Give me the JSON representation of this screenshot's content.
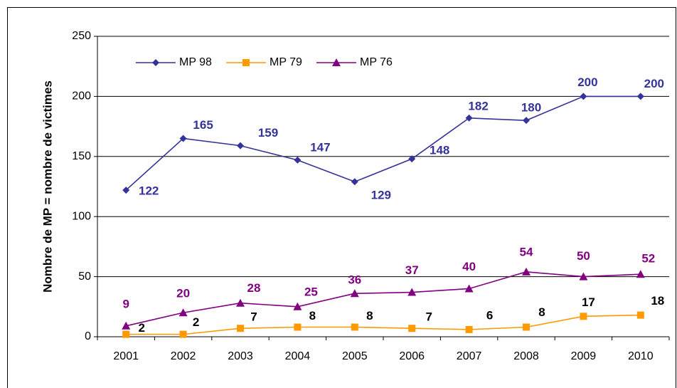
{
  "chart_data": {
    "type": "line",
    "y_label": "Nombre de MP = nombre de victimes",
    "categories": [
      "2001",
      "2002",
      "2003",
      "2004",
      "2005",
      "2006",
      "2007",
      "2008",
      "2009",
      "2010"
    ],
    "series": [
      {
        "name": "MP 98",
        "color": "#333399",
        "marker": "diamond",
        "label_color": "#333399",
        "values": [
          122,
          165,
          159,
          147,
          129,
          148,
          182,
          180,
          200,
          200
        ]
      },
      {
        "name": "MP 79",
        "color": "#ff9900",
        "marker": "square",
        "label_color": "#000000",
        "values": [
          2,
          2,
          7,
          8,
          8,
          7,
          6,
          8,
          17,
          18
        ]
      },
      {
        "name": "MP 76",
        "color": "#800080",
        "marker": "triangle",
        "label_color": "#800080",
        "values": [
          9,
          20,
          28,
          25,
          36,
          37,
          40,
          54,
          50,
          52
        ]
      }
    ],
    "ylim": [
      0,
      250
    ],
    "yticks": [
      0,
      50,
      100,
      150,
      200,
      250
    ],
    "grid": true,
    "legend": "top-left"
  }
}
